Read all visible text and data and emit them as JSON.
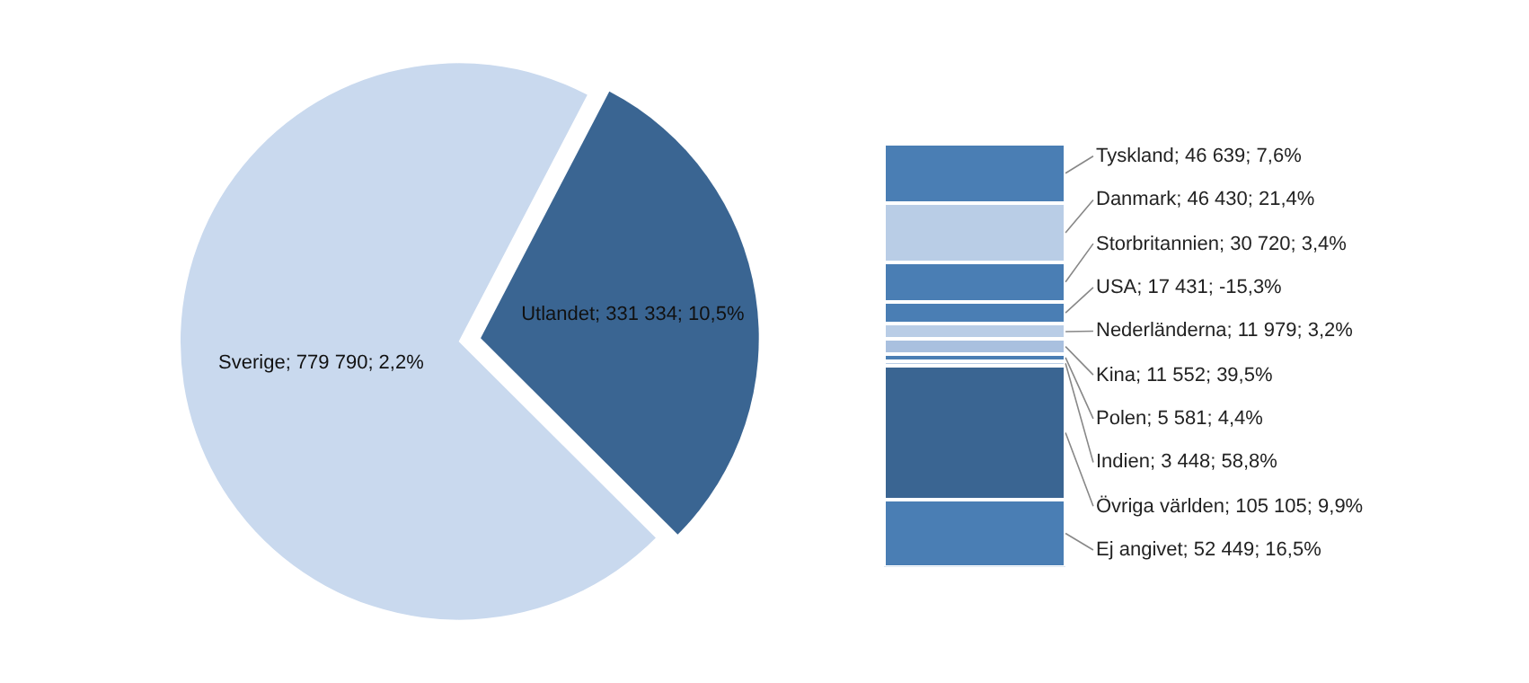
{
  "chart_data": [
    {
      "type": "pie",
      "categories": [
        "Sverige",
        "Utlandet"
      ],
      "values": [
        779790,
        331334
      ],
      "colors": [
        "#c9d9ee",
        "#3a6592"
      ],
      "value_labels": [
        "779 790; 2,2%",
        "331 334; 10,5%"
      ]
    },
    {
      "type": "bar",
      "stacked": true,
      "categories": [
        null
      ],
      "series": [
        {
          "color": "#4a7eb4",
          "values": [
            52449
          ],
          "value_labels": [
            "Ej angivet; 52 449; 16,5%"
          ]
        },
        {
          "color": "#3a6592",
          "values": [
            105105
          ],
          "value_labels": [
            "Övriga världen; 105 105; 9,9%"
          ]
        },
        {
          "color": "#b9cde6",
          "values": [
            3448
          ],
          "value_labels": [
            "Indien; 3 448; 58,8%"
          ]
        },
        {
          "color": "#4a7eb4",
          "values": [
            5581
          ],
          "value_labels": [
            "Polen; 5 581; 4,4%"
          ]
        },
        {
          "color": "#a9c0df",
          "values": [
            11552
          ],
          "value_labels": [
            "Kina; 11 552; 39,5%"
          ]
        },
        {
          "color": "#b9cde6",
          "values": [
            11979
          ],
          "value_labels": [
            "Nederländerna; 11 979; 3,2%"
          ]
        },
        {
          "color": "#4a7eb4",
          "values": [
            17431
          ],
          "value_labels": [
            "USA; 17 431; -15,3%"
          ]
        },
        {
          "color": "#4a7eb4",
          "values": [
            30720
          ],
          "value_labels": [
            "Storbritannien; 30 720; 3,4%"
          ]
        },
        {
          "color": "#b9cde6",
          "values": [
            46430
          ],
          "value_labels": [
            "Danmark; 46 430; 21,4%"
          ]
        },
        {
          "color": "#4a7eb4",
          "values": [
            46639
          ],
          "value_labels": [
            "Tyskland; 46 639; 7,6%"
          ]
        }
      ]
    }
  ]
}
